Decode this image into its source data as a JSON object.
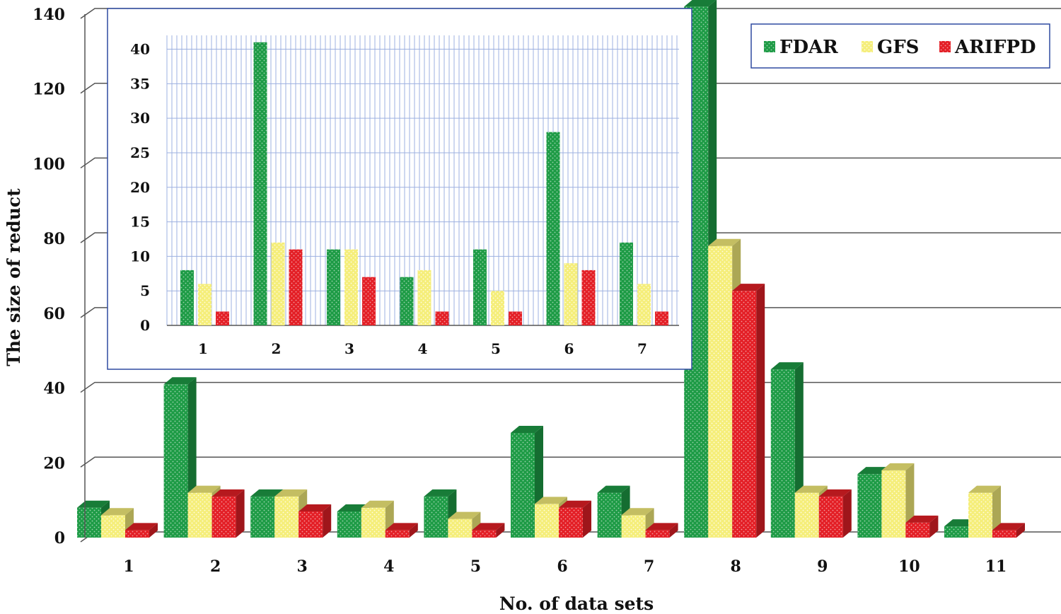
{
  "chart_data": [
    {
      "type": "bar",
      "title": "",
      "xlabel": "No. of data sets",
      "ylabel": "The size of reduct",
      "ylim": [
        0,
        140
      ],
      "yticks": [
        0,
        20,
        40,
        60,
        80,
        100,
        120,
        140
      ],
      "categories": [
        "1",
        "2",
        "3",
        "4",
        "5",
        "6",
        "7",
        "8",
        "9",
        "10",
        "11"
      ],
      "series": [
        {
          "name": "FDAR",
          "color": "#1e9b46",
          "values": [
            8,
            41,
            11,
            7,
            11,
            28,
            12,
            142,
            45,
            17,
            3
          ]
        },
        {
          "name": "GFS",
          "color": "#f5ee7a",
          "values": [
            6,
            12,
            11,
            8,
            5,
            9,
            6,
            78,
            12,
            18,
            12
          ]
        },
        {
          "name": "ARIFPD",
          "color": "#e31f26",
          "values": [
            2,
            11,
            7,
            2,
            2,
            8,
            2,
            66,
            11,
            4,
            2
          ]
        }
      ],
      "legend": "top-right",
      "grid": true
    },
    {
      "type": "bar",
      "title": "",
      "xlabel": "",
      "ylabel": "",
      "ylim": [
        0,
        42
      ],
      "yticks": [
        0,
        5,
        10,
        15,
        20,
        25,
        30,
        35,
        40
      ],
      "categories": [
        "1",
        "2",
        "3",
        "4",
        "5",
        "6",
        "7"
      ],
      "series": [
        {
          "name": "FDAR",
          "color": "#1e9b46",
          "values": [
            8,
            41,
            11,
            7,
            11,
            28,
            12
          ]
        },
        {
          "name": "GFS",
          "color": "#f5ee7a",
          "values": [
            6,
            12,
            11,
            8,
            5,
            9,
            6
          ]
        },
        {
          "name": "ARIFPD",
          "color": "#e31f26",
          "values": [
            2,
            11,
            7,
            2,
            2,
            8,
            2
          ]
        }
      ],
      "legend": "none",
      "grid": true
    }
  ]
}
